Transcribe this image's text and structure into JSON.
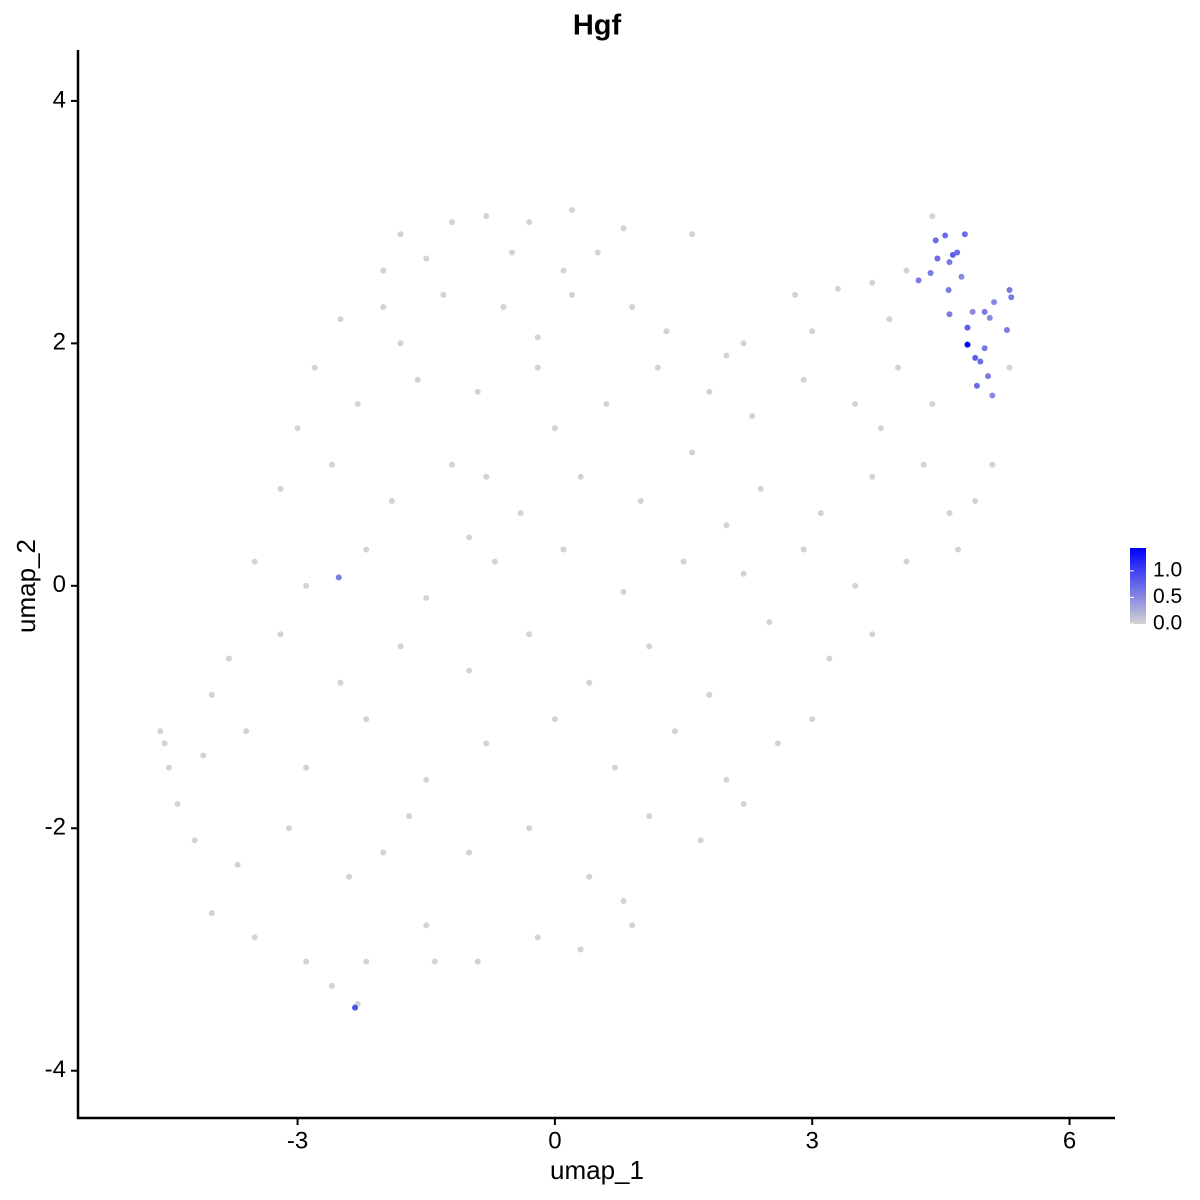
{
  "chart_data": {
    "type": "scatter",
    "title": "Hgf",
    "xlabel": "umap_1",
    "ylabel": "umap_2",
    "xlim": [
      -5.56,
      6.53
    ],
    "ylim": [
      -4.39,
      4.42
    ],
    "xticks": [
      -3,
      0,
      3,
      6
    ],
    "yticks": [
      -4,
      -2,
      0,
      2,
      4
    ],
    "color_scale": {
      "low": "#d3d3d3",
      "high": "#0000ff",
      "limits": [
        0,
        1.43
      ],
      "ticks": [
        {
          "value": 0,
          "label": "0.0"
        },
        0.5,
        {
          "value": 1,
          "label": "1.0"
        }
      ]
    },
    "x": [
      -1.8,
      -1.2,
      -0.8,
      -0.3,
      0.2,
      0.8,
      -1.5,
      -0.5,
      0.5,
      1.6,
      -2.0,
      0.1,
      -2.5,
      -2.0,
      -1.3,
      -0.6,
      0.2,
      0.9,
      1.3,
      2.8,
      3.3,
      3.7,
      4.1,
      4.4,
      -1.8,
      -0.2,
      2.2,
      3.0,
      3.9,
      -2.8,
      -2.3,
      -1.6,
      -0.9,
      -0.2,
      0.6,
      1.2,
      1.8,
      2.3,
      2.9,
      3.5,
      4.0,
      4.4,
      5.3,
      -3.0,
      0.0,
      2.0,
      3.8,
      -3.2,
      -2.6,
      -1.9,
      -1.2,
      -0.4,
      0.3,
      1.0,
      1.6,
      2.4,
      3.1,
      3.7,
      4.3,
      4.9,
      5.1,
      4.6,
      -0.8,
      2.0,
      -3.5,
      -2.9,
      -2.2,
      -1.5,
      -0.7,
      0.1,
      0.8,
      1.5,
      2.2,
      2.9,
      3.5,
      4.1,
      4.7,
      -1.0,
      -3.8,
      -3.2,
      -2.5,
      -1.8,
      -1.0,
      -0.3,
      0.4,
      1.1,
      1.8,
      2.5,
      3.2,
      3.7,
      -4.0,
      -4.6,
      -4.55,
      -4.1,
      -3.6,
      -2.9,
      -2.2,
      -1.5,
      -0.8,
      0.0,
      0.7,
      1.4,
      2.0,
      2.6,
      3.0,
      -4.5,
      -4.4,
      -4.2,
      -3.7,
      -3.1,
      -2.4,
      -1.7,
      -1.0,
      -0.3,
      0.4,
      1.1,
      1.7,
      2.2,
      -2.0,
      0.8,
      -4.0,
      -3.5,
      -2.9,
      -2.6,
      -2.2,
      -1.5,
      -0.9,
      -0.2,
      0.3,
      0.9,
      -1.4,
      -2.3,
      -2.52,
      4.24,
      4.38,
      4.44,
      4.55,
      4.46,
      4.6,
      4.64,
      4.69,
      4.78,
      4.59,
      4.6,
      4.81,
      4.87,
      5.01,
      5.12,
      5.3,
      5.32,
      5.27,
      5.07,
      4.9,
      4.96,
      5.01,
      5.05,
      4.92,
      5.1,
      4.74,
      -2.33,
      4.81
    ],
    "y": [
      2.9,
      3.0,
      3.05,
      3.0,
      3.1,
      2.95,
      2.7,
      2.75,
      2.75,
      2.9,
      2.6,
      2.6,
      2.2,
      2.3,
      2.4,
      2.3,
      2.4,
      2.3,
      2.1,
      2.4,
      2.45,
      2.5,
      2.6,
      3.05,
      2.0,
      2.05,
      2.0,
      2.1,
      2.2,
      1.8,
      1.5,
      1.7,
      1.6,
      1.8,
      1.5,
      1.8,
      1.6,
      1.4,
      1.7,
      1.5,
      1.8,
      1.5,
      1.8,
      1.3,
      1.3,
      1.9,
      1.3,
      0.8,
      1.0,
      0.7,
      1.0,
      0.6,
      0.9,
      0.7,
      1.1,
      0.8,
      0.6,
      0.9,
      1.0,
      0.7,
      1.0,
      0.6,
      0.9,
      0.5,
      0.2,
      0.0,
      0.3,
      -0.1,
      0.2,
      0.3,
      -0.05,
      0.2,
      0.1,
      0.3,
      0.0,
      0.2,
      0.3,
      0.4,
      -0.6,
      -0.4,
      -0.8,
      -0.5,
      -0.7,
      -0.4,
      -0.8,
      -0.5,
      -0.9,
      -0.3,
      -0.6,
      -0.4,
      -0.9,
      -1.2,
      -1.3,
      -1.4,
      -1.2,
      -1.5,
      -1.1,
      -1.6,
      -1.3,
      -1.1,
      -1.5,
      -1.2,
      -1.6,
      -1.3,
      -1.1,
      -1.5,
      -1.8,
      -2.1,
      -2.3,
      -2.0,
      -2.4,
      -1.9,
      -2.2,
      -2.0,
      -2.4,
      -1.9,
      -2.1,
      -1.8,
      -2.2,
      -2.6,
      -2.7,
      -2.9,
      -3.1,
      -3.3,
      -3.1,
      -2.8,
      -3.1,
      -2.9,
      -3.0,
      -2.8,
      -3.1,
      -3.45,
      0.07,
      2.52,
      2.58,
      2.85,
      2.89,
      2.7,
      2.67,
      2.73,
      2.75,
      2.9,
      2.44,
      2.24,
      2.13,
      2.26,
      2.26,
      2.34,
      2.44,
      2.38,
      2.11,
      2.21,
      1.88,
      1.85,
      1.96,
      1.73,
      1.65,
      1.57,
      2.55,
      -3.48,
      1.99
    ],
    "values": [
      0,
      0,
      0,
      0,
      0,
      0,
      0,
      0,
      0,
      0,
      0,
      0,
      0,
      0,
      0,
      0,
      0,
      0,
      0,
      0,
      0,
      0,
      0,
      0,
      0,
      0,
      0,
      0,
      0,
      0,
      0,
      0,
      0,
      0,
      0,
      0,
      0,
      0,
      0,
      0,
      0,
      0,
      0,
      0,
      0,
      0,
      0,
      0,
      0,
      0,
      0,
      0,
      0,
      0,
      0,
      0,
      0,
      0,
      0,
      0,
      0,
      0,
      0,
      0,
      0,
      0,
      0,
      0,
      0,
      0,
      0,
      0,
      0,
      0,
      0,
      0,
      0,
      0,
      0,
      0,
      0,
      0,
      0,
      0,
      0,
      0,
      0,
      0,
      0,
      0,
      0,
      0,
      0,
      0,
      0,
      0,
      0,
      0,
      0,
      0,
      0,
      0,
      0,
      0,
      0,
      0,
      0,
      0,
      0,
      0,
      0,
      0,
      0,
      0,
      0,
      0,
      0,
      0,
      0,
      0,
      0,
      0,
      0,
      0,
      0,
      0,
      0,
      0,
      0,
      0,
      0,
      0,
      0.6,
      0.6,
      0.6,
      0.7,
      0.7,
      0.7,
      0.6,
      0.8,
      0.7,
      0.7,
      0.6,
      0.6,
      0.8,
      0.5,
      0.6,
      0.5,
      0.6,
      0.6,
      0.6,
      0.5,
      0.8,
      0.7,
      0.6,
      0.6,
      0.7,
      0.5,
      0.5,
      0.9,
      1.43
    ]
  }
}
